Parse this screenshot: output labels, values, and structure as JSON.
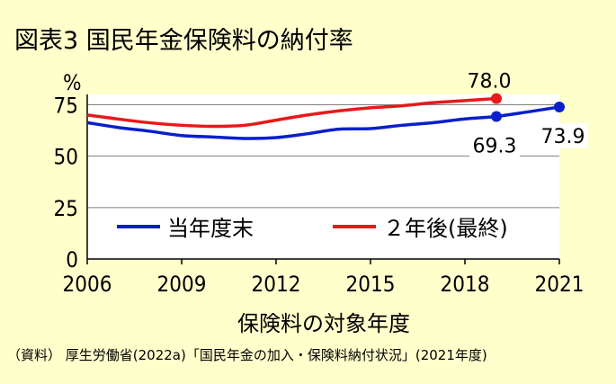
{
  "title": "図表3 国民年金保険料の納付率",
  "source": "（資料） 厚生労働省(2022a)「国民年金の加入・保険料納付状況」(2021年度)",
  "colors": {
    "background": "#ffffcc",
    "series_blue": "#0a1fcc",
    "series_red": "#e8191a"
  },
  "chart_data": {
    "type": "line",
    "title": "図表3 国民年金保険料の納付率",
    "xlabel": "保険料の対象年度",
    "ylabel": "%",
    "xlim": [
      2006,
      2021
    ],
    "ylim": [
      0,
      80
    ],
    "x_ticks": [
      "2006",
      "2009",
      "2012",
      "2015",
      "2018",
      "2021"
    ],
    "y_ticks": [
      "0",
      "25",
      "50",
      "75"
    ],
    "grid": "horizontal",
    "legend_position": "bottom-center",
    "series": [
      {
        "name": "当年度末",
        "color": "#0a1fcc",
        "x": [
          2006,
          2007,
          2008,
          2009,
          2010,
          2011,
          2012,
          2013,
          2014,
          2015,
          2016,
          2017,
          2018,
          2019,
          2020,
          2021
        ],
        "y": [
          66.3,
          63.9,
          62.1,
          60.0,
          59.3,
          58.6,
          59.0,
          60.9,
          63.1,
          63.4,
          65.0,
          66.3,
          68.1,
          69.3,
          71.5,
          73.9
        ],
        "marker_points": [
          {
            "x": 2019,
            "y": 69.3,
            "label": "69.3"
          },
          {
            "x": 2021,
            "y": 73.9,
            "label": "73.9"
          }
        ]
      },
      {
        "name": "２年後(最終)",
        "color": "#e8191a",
        "x": [
          2006,
          2007,
          2008,
          2009,
          2010,
          2011,
          2012,
          2013,
          2014,
          2015,
          2016,
          2017,
          2018,
          2019
        ],
        "y": [
          70.0,
          68.0,
          66.2,
          65.0,
          64.5,
          65.0,
          67.5,
          70.0,
          72.0,
          73.5,
          74.5,
          76.0,
          77.0,
          78.0
        ],
        "marker_points": [
          {
            "x": 2019,
            "y": 78.0,
            "label": "78.0"
          }
        ]
      }
    ]
  }
}
